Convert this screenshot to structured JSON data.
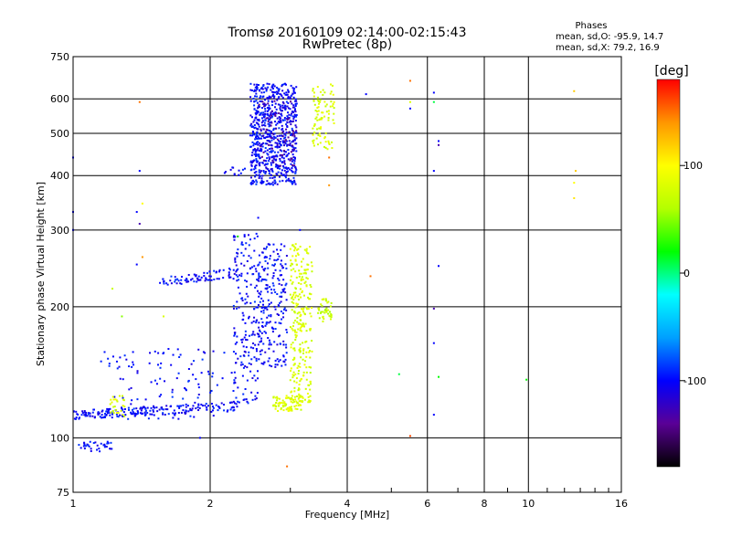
{
  "chart_data": {
    "type": "scatter",
    "title": "Tromsø 20160109 02:14:00-02:15:43",
    "subtitle": "RwPretec (8p)",
    "xlabel": "Frequency [MHz]",
    "ylabel": "Stationary phase Virtual Height [km]",
    "x_scale": "log",
    "y_scale": "log",
    "xlim": [
      1,
      16
    ],
    "ylim": [
      75,
      750
    ],
    "x_ticks": [
      "1",
      "2",
      "4",
      "6",
      "8",
      "10",
      "16"
    ],
    "x_tick_values": [
      1,
      2,
      4,
      6,
      8,
      10,
      16
    ],
    "x_gridlines": [
      2,
      4,
      6,
      8,
      10
    ],
    "y_ticks": [
      "75",
      "100",
      "200",
      "300",
      "400",
      "500",
      "600",
      "750"
    ],
    "y_tick_values": [
      75,
      100,
      200,
      300,
      400,
      500,
      600,
      750
    ],
    "y_gridlines": [
      100,
      200,
      300,
      400,
      500,
      600
    ],
    "grid": true,
    "stats": {
      "heading": "Phases",
      "o_line": "mean, sd,O: -95.9, 14.7",
      "x_line": "mean, sd,X:  79.2, 16.9"
    },
    "colorbar": {
      "label": "[deg]",
      "range": [
        -180,
        180
      ],
      "ticks": [
        100,
        0,
        -100
      ],
      "tick_labels": [
        "100",
        "0",
        "-100"
      ],
      "stops": [
        "#000000",
        "#5a0096",
        "#0000ff",
        "#00a0ff",
        "#00ffff",
        "#00ff00",
        "#b4ff00",
        "#ffff00",
        "#ff9600",
        "#ff0000"
      ]
    },
    "clusters": [
      {
        "x": [
          2.45,
          3.1
        ],
        "y": [
          380,
          650
        ],
        "phase": -100,
        "n": 700,
        "type": "box"
      },
      {
        "x": [
          2.55,
          3.1
        ],
        "y": [
          420,
          600
        ],
        "phase": -130,
        "n": 90,
        "type": "box"
      },
      {
        "x": [
          3.35,
          3.75
        ],
        "y": [
          460,
          650
        ],
        "phase": 80,
        "n": 90,
        "type": "box"
      },
      {
        "x": [
          2.15,
          2.4
        ],
        "y": [
          400,
          420
        ],
        "phase": -100,
        "n": 12,
        "type": "box"
      },
      {
        "x": [
          1.0,
          2.3
        ],
        "y": [
          108,
          120
        ],
        "phase": -100,
        "n": 200,
        "type": "line",
        "y1": 113,
        "y2": 118
      },
      {
        "x": [
          1.15,
          2.3
        ],
        "y": [
          110,
          160
        ],
        "phase": -100,
        "n": 110,
        "type": "box"
      },
      {
        "x": [
          1.2,
          1.3
        ],
        "y": [
          112,
          125
        ],
        "phase": 80,
        "n": 25,
        "type": "box"
      },
      {
        "x": [
          1.02,
          1.22
        ],
        "y": [
          93,
          98
        ],
        "phase": -100,
        "n": 35,
        "type": "box"
      },
      {
        "x": [
          1.55,
          2.3
        ],
        "y": [
          225,
          245
        ],
        "phase": -100,
        "n": 80,
        "type": "line",
        "y1": 228,
        "y2": 240
      },
      {
        "x": [
          2.25,
          2.55
        ],
        "y": [
          120,
          295
        ],
        "phase": -100,
        "n": 180,
        "type": "box"
      },
      {
        "x": [
          2.55,
          2.95
        ],
        "y": [
          145,
          280
        ],
        "phase": -100,
        "n": 220,
        "type": "box"
      },
      {
        "x": [
          2.75,
          3.2
        ],
        "y": [
          115,
          125
        ],
        "phase": 80,
        "n": 80,
        "type": "box"
      },
      {
        "x": [
          3.0,
          3.35
        ],
        "y": [
          120,
          280
        ],
        "phase": 80,
        "n": 260,
        "type": "box"
      },
      {
        "x": [
          3.45,
          3.7
        ],
        "y": [
          185,
          210
        ],
        "phase": 70,
        "n": 40,
        "type": "box"
      }
    ],
    "points": [
      {
        "x": 1.0,
        "y": 440,
        "phase": -100
      },
      {
        "x": 1.0,
        "y": 330,
        "phase": -100
      },
      {
        "x": 1.0,
        "y": 300,
        "phase": -100
      },
      {
        "x": 1.4,
        "y": 590,
        "phase": 150
      },
      {
        "x": 1.4,
        "y": 410,
        "phase": -100
      },
      {
        "x": 1.38,
        "y": 330,
        "phase": -100
      },
      {
        "x": 1.4,
        "y": 310,
        "phase": -130
      },
      {
        "x": 1.42,
        "y": 345,
        "phase": 100
      },
      {
        "x": 1.42,
        "y": 260,
        "phase": 140
      },
      {
        "x": 1.38,
        "y": 250,
        "phase": -100
      },
      {
        "x": 1.22,
        "y": 220,
        "phase": 70
      },
      {
        "x": 1.28,
        "y": 190,
        "phase": 50
      },
      {
        "x": 1.58,
        "y": 190,
        "phase": 80
      },
      {
        "x": 1.62,
        "y": 160,
        "phase": -100
      },
      {
        "x": 1.9,
        "y": 100,
        "phase": -100
      },
      {
        "x": 2.3,
        "y": 290,
        "phase": 30
      },
      {
        "x": 2.55,
        "y": 320,
        "phase": -100
      },
      {
        "x": 2.95,
        "y": 86,
        "phase": 150
      },
      {
        "x": 3.15,
        "y": 300,
        "phase": -100
      },
      {
        "x": 3.65,
        "y": 440,
        "phase": 150
      },
      {
        "x": 3.65,
        "y": 380,
        "phase": 140
      },
      {
        "x": 4.4,
        "y": 615,
        "phase": -100
      },
      {
        "x": 4.5,
        "y": 235,
        "phase": 150
      },
      {
        "x": 5.2,
        "y": 140,
        "phase": 10
      },
      {
        "x": 5.5,
        "y": 660,
        "phase": 150
      },
      {
        "x": 5.5,
        "y": 570,
        "phase": -100
      },
      {
        "x": 5.5,
        "y": 590,
        "phase": 80
      },
      {
        "x": 5.5,
        "y": 101,
        "phase": 160
      },
      {
        "x": 6.2,
        "y": 620,
        "phase": -100
      },
      {
        "x": 6.2,
        "y": 590,
        "phase": 10
      },
      {
        "x": 6.2,
        "y": 410,
        "phase": -100
      },
      {
        "x": 6.2,
        "y": 198,
        "phase": -130
      },
      {
        "x": 6.2,
        "y": 165,
        "phase": -100
      },
      {
        "x": 6.2,
        "y": 113,
        "phase": -100
      },
      {
        "x": 6.35,
        "y": 480,
        "phase": -100
      },
      {
        "x": 6.35,
        "y": 470,
        "phase": -130
      },
      {
        "x": 6.35,
        "y": 248,
        "phase": -100
      },
      {
        "x": 6.35,
        "y": 138,
        "phase": 20
      },
      {
        "x": 9.9,
        "y": 136,
        "phase": 20
      },
      {
        "x": 12.6,
        "y": 625,
        "phase": 120
      },
      {
        "x": 12.7,
        "y": 410,
        "phase": 120
      },
      {
        "x": 12.6,
        "y": 385,
        "phase": 100
      },
      {
        "x": 12.6,
        "y": 355,
        "phase": 110
      }
    ]
  }
}
